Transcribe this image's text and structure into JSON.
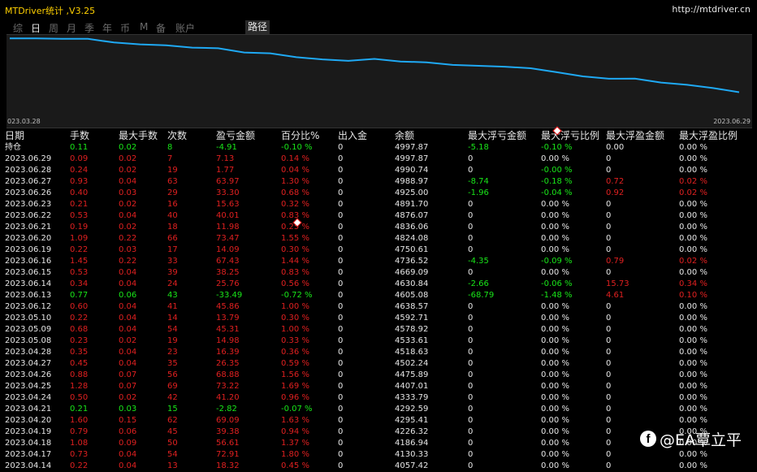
{
  "app": {
    "title": "MTDriver统计 ,V3.25",
    "url": "http://mtdriver.cn"
  },
  "nav": {
    "items": [
      "综",
      "日",
      "周",
      "月",
      "季",
      "年",
      "币",
      "M",
      "备",
      "账户"
    ],
    "active": "日",
    "path_label": "路径"
  },
  "equity_chart": {
    "start_date": "023.03.28",
    "end_date": "2023.06.29",
    "line_color": "#1fa9f4",
    "values": [
      4057.42,
      4130.33,
      4186.94,
      4226.32,
      4295.41,
      4292.59,
      4333.79,
      4407.01,
      4475.89,
      4502.24,
      4518.63,
      4533.61,
      4578.92,
      4592.71,
      4638.57,
      4605.08,
      4630.84,
      4669.09,
      4736.52,
      4750.61,
      4824.08,
      4836.06,
      4876.07,
      4891.7,
      4925.0,
      4988.97,
      4990.74,
      4997.87,
      4997.87
    ]
  },
  "table": {
    "headers": [
      "日期",
      "手数",
      "最大手数",
      "次数",
      "盈亏金额",
      "百分比%",
      "出入金",
      "余额",
      "最大浮亏金额",
      "最大浮亏比例",
      "最大浮盈金额",
      "最大浮盈比例"
    ],
    "rows": [
      {
        "cells": [
          "持仓",
          "0.11",
          "0.02",
          "8",
          "-4.91",
          "-0.10 %",
          "0",
          "4997.87",
          "-5.18",
          "-0.10 %",
          "0.00",
          "0.00 %"
        ],
        "sign": "pos",
        "c8": "green",
        "c9": "green",
        "c10": "white",
        "c11": "white"
      },
      {
        "cells": [
          "2023.06.29",
          "0.09",
          "0.02",
          "7",
          "7.13",
          "0.14 %",
          "0",
          "4997.87",
          "0",
          "0.00 %",
          "0",
          "0.00 %"
        ],
        "sign": "neg"
      },
      {
        "cells": [
          "2023.06.28",
          "0.24",
          "0.02",
          "19",
          "1.77",
          "0.04 %",
          "0",
          "4990.74",
          "0",
          "-0.00 %",
          "0",
          "0.00 %"
        ],
        "sign": "neg",
        "c9": "green"
      },
      {
        "cells": [
          "2023.06.27",
          "0.93",
          "0.04",
          "63",
          "63.97",
          "1.30 %",
          "0",
          "4988.97",
          "-8.74",
          "-0.18 %",
          "0.72",
          "0.02 %"
        ],
        "sign": "neg",
        "c8": "green",
        "c9": "green",
        "c10": "red",
        "c11": "red"
      },
      {
        "cells": [
          "2023.06.26",
          "0.40",
          "0.03",
          "29",
          "33.30",
          "0.68 %",
          "0",
          "4925.00",
          "-1.96",
          "-0.04 %",
          "0.92",
          "0.02 %"
        ],
        "sign": "neg",
        "c8": "green",
        "c9": "green",
        "c10": "red",
        "c11": "red"
      },
      {
        "cells": [
          "2023.06.23",
          "0.21",
          "0.02",
          "16",
          "15.63",
          "0.32 %",
          "0",
          "4891.70",
          "0",
          "0.00 %",
          "0",
          "0.00 %"
        ],
        "sign": "neg"
      },
      {
        "cells": [
          "2023.06.22",
          "0.53",
          "0.04",
          "40",
          "40.01",
          "0.83 %",
          "0",
          "4876.07",
          "0",
          "0.00 %",
          "0",
          "0.00 %"
        ],
        "sign": "neg"
      },
      {
        "cells": [
          "2023.06.21",
          "0.19",
          "0.02",
          "18",
          "11.98",
          "0.25 %",
          "0",
          "4836.06",
          "0",
          "0.00 %",
          "0",
          "0.00 %"
        ],
        "sign": "neg"
      },
      {
        "cells": [
          "2023.06.20",
          "1.09",
          "0.22",
          "66",
          "73.47",
          "1.55 %",
          "0",
          "4824.08",
          "0",
          "0.00 %",
          "0",
          "0.00 %"
        ],
        "sign": "neg"
      },
      {
        "cells": [
          "2023.06.19",
          "0.22",
          "0.03",
          "17",
          "14.09",
          "0.30 %",
          "0",
          "4750.61",
          "0",
          "0.00 %",
          "0",
          "0.00 %"
        ],
        "sign": "neg"
      },
      {
        "cells": [
          "2023.06.16",
          "1.45",
          "0.22",
          "33",
          "67.43",
          "1.44 %",
          "0",
          "4736.52",
          "-4.35",
          "-0.09 %",
          "0.79",
          "0.02 %"
        ],
        "sign": "neg",
        "c8": "green",
        "c9": "green",
        "c10": "red",
        "c11": "red"
      },
      {
        "cells": [
          "2023.06.15",
          "0.53",
          "0.04",
          "39",
          "38.25",
          "0.83 %",
          "0",
          "4669.09",
          "0",
          "0.00 %",
          "0",
          "0.00 %"
        ],
        "sign": "neg"
      },
      {
        "cells": [
          "2023.06.14",
          "0.34",
          "0.04",
          "24",
          "25.76",
          "0.56 %",
          "0",
          "4630.84",
          "-2.66",
          "-0.06 %",
          "15.73",
          "0.34 %"
        ],
        "sign": "neg",
        "c8": "green",
        "c9": "green",
        "c10": "red",
        "c11": "red"
      },
      {
        "cells": [
          "2023.06.13",
          "0.77",
          "0.06",
          "43",
          "-33.49",
          "-0.72 %",
          "0",
          "4605.08",
          "-68.79",
          "-1.48 %",
          "4.61",
          "0.10 %"
        ],
        "sign": "pos",
        "c8": "green",
        "c9": "green",
        "c10": "red",
        "c11": "red"
      },
      {
        "cells": [
          "2023.06.12",
          "0.60",
          "0.04",
          "41",
          "45.86",
          "1.00 %",
          "0",
          "4638.57",
          "0",
          "0.00 %",
          "0",
          "0.00 %"
        ],
        "sign": "neg"
      },
      {
        "cells": [
          "2023.05.10",
          "0.22",
          "0.04",
          "14",
          "13.79",
          "0.30 %",
          "0",
          "4592.71",
          "0",
          "0.00 %",
          "0",
          "0.00 %"
        ],
        "sign": "neg"
      },
      {
        "cells": [
          "2023.05.09",
          "0.68",
          "0.04",
          "54",
          "45.31",
          "1.00 %",
          "0",
          "4578.92",
          "0",
          "0.00 %",
          "0",
          "0.00 %"
        ],
        "sign": "neg"
      },
      {
        "cells": [
          "2023.05.08",
          "0.23",
          "0.02",
          "19",
          "14.98",
          "0.33 %",
          "0",
          "4533.61",
          "0",
          "0.00 %",
          "0",
          "0.00 %"
        ],
        "sign": "neg"
      },
      {
        "cells": [
          "2023.04.28",
          "0.35",
          "0.04",
          "23",
          "16.39",
          "0.36 %",
          "0",
          "4518.63",
          "0",
          "0.00 %",
          "0",
          "0.00 %"
        ],
        "sign": "neg"
      },
      {
        "cells": [
          "2023.04.27",
          "0.45",
          "0.04",
          "35",
          "26.35",
          "0.59 %",
          "0",
          "4502.24",
          "0",
          "0.00 %",
          "0",
          "0.00 %"
        ],
        "sign": "neg"
      },
      {
        "cells": [
          "2023.04.26",
          "0.88",
          "0.07",
          "56",
          "68.88",
          "1.56 %",
          "0",
          "4475.89",
          "0",
          "0.00 %",
          "0",
          "0.00 %"
        ],
        "sign": "neg"
      },
      {
        "cells": [
          "2023.04.25",
          "1.28",
          "0.07",
          "69",
          "73.22",
          "1.69 %",
          "0",
          "4407.01",
          "0",
          "0.00 %",
          "0",
          "0.00 %"
        ],
        "sign": "neg"
      },
      {
        "cells": [
          "2023.04.24",
          "0.50",
          "0.02",
          "42",
          "41.20",
          "0.96 %",
          "0",
          "4333.79",
          "0",
          "0.00 %",
          "0",
          "0.00 %"
        ],
        "sign": "neg"
      },
      {
        "cells": [
          "2023.04.21",
          "0.21",
          "0.03",
          "15",
          "-2.82",
          "-0.07 %",
          "0",
          "4292.59",
          "0",
          "0.00 %",
          "0",
          "0.00 %"
        ],
        "sign": "pos"
      },
      {
        "cells": [
          "2023.04.20",
          "1.60",
          "0.15",
          "62",
          "69.09",
          "1.63 %",
          "0",
          "4295.41",
          "0",
          "0.00 %",
          "0",
          "0.00 %"
        ],
        "sign": "neg"
      },
      {
        "cells": [
          "2023.04.19",
          "0.79",
          "0.06",
          "45",
          "39.38",
          "0.94 %",
          "0",
          "4226.32",
          "0",
          "0.00 %",
          "0",
          "0.00 %"
        ],
        "sign": "neg"
      },
      {
        "cells": [
          "2023.04.18",
          "1.08",
          "0.09",
          "50",
          "56.61",
          "1.37 %",
          "0",
          "4186.94",
          "0",
          "0.00 %",
          "0",
          "0.00 %"
        ],
        "sign": "neg"
      },
      {
        "cells": [
          "2023.04.17",
          "0.73",
          "0.04",
          "54",
          "72.91",
          "1.80 %",
          "0",
          "4130.33",
          "0",
          "0.00 %",
          "0",
          "0.00 %"
        ],
        "sign": "neg"
      },
      {
        "cells": [
          "2023.04.14",
          "0.22",
          "0.04",
          "13",
          "18.32",
          "0.45 %",
          "0",
          "4057.42",
          "0",
          "0.00 %",
          "0",
          "0.00 %"
        ],
        "sign": "neg"
      }
    ]
  },
  "watermark": {
    "icon": "facebook-icon",
    "text": "@EA覃立平"
  }
}
